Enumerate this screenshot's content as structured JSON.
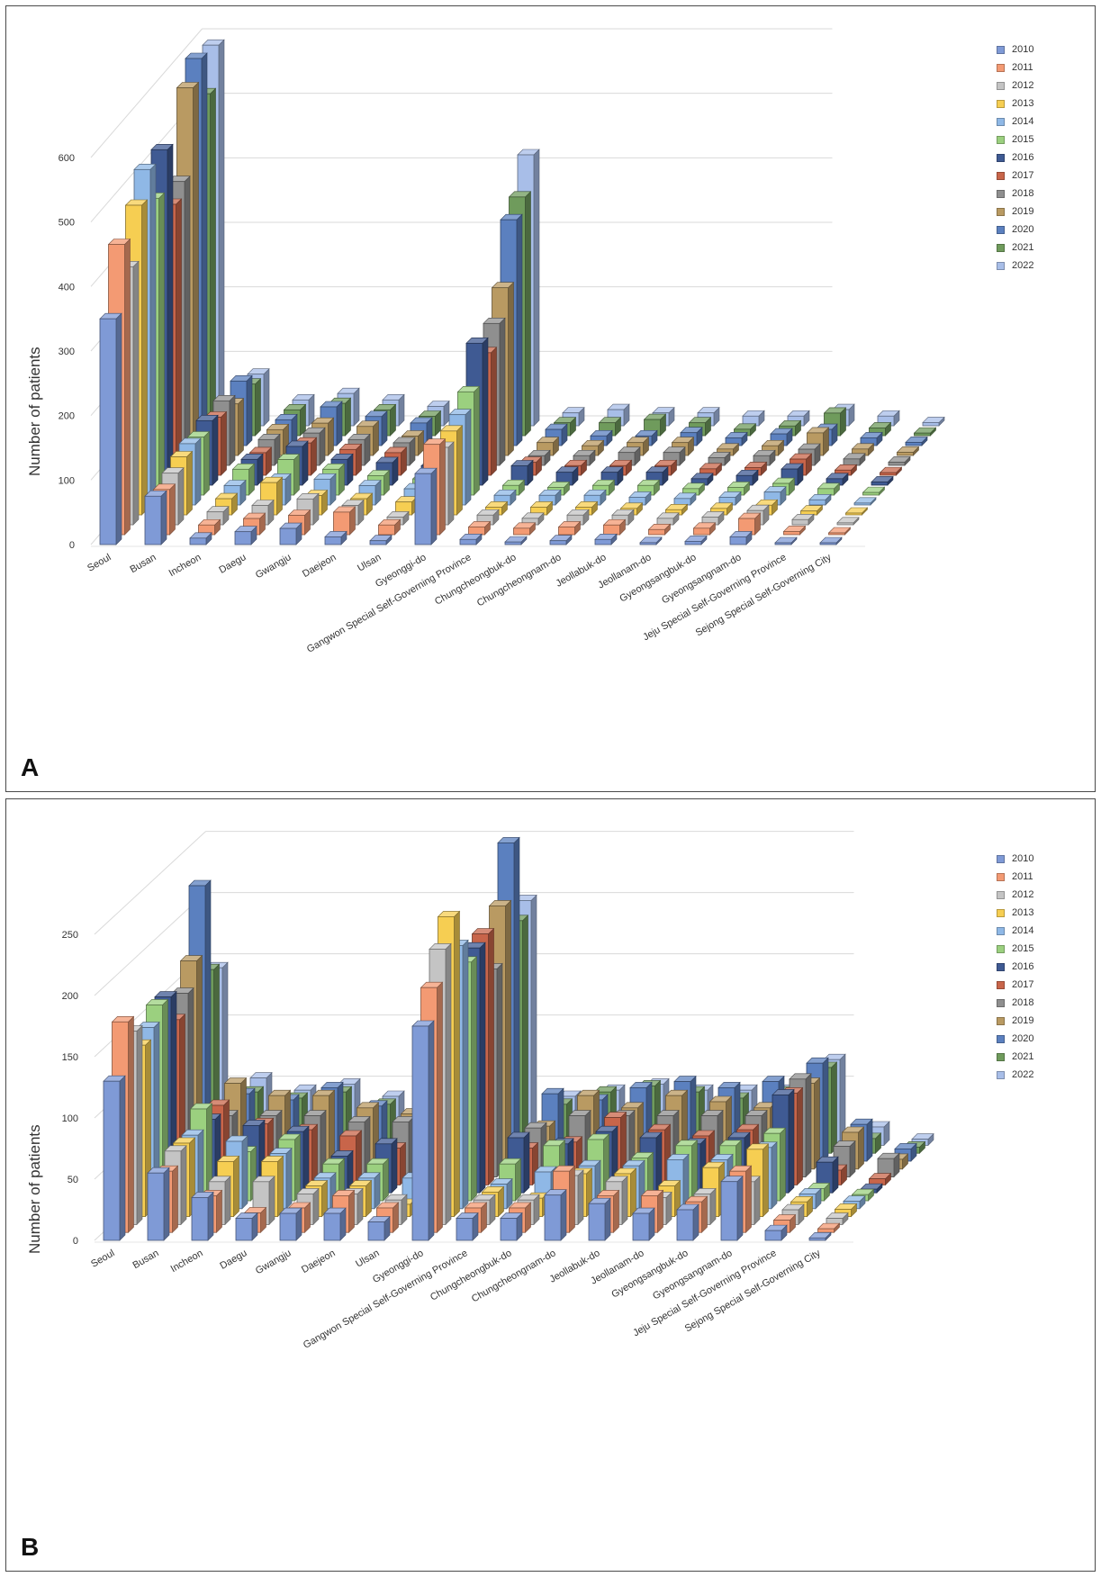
{
  "series_colors": {
    "2010": "#7f9ad6",
    "2011": "#f39a73",
    "2012": "#c4c4c4",
    "2013": "#f6ce52",
    "2014": "#8fb8e6",
    "2015": "#9bd07f",
    "2016": "#3f5a93",
    "2017": "#c8654a",
    "2018": "#8f8f8f",
    "2019": "#b99a62",
    "2020": "#5b80bf",
    "2021": "#6f9b5c",
    "2022": "#a8bee8"
  },
  "panel_a": {
    "letter": "A"
  },
  "panel_b": {
    "letter": "B"
  },
  "chart_data": [
    {
      "type": "bar",
      "panel": "A",
      "ylabel": "Number of patients",
      "ylim": [
        0,
        600
      ],
      "yticks": [
        0,
        100,
        200,
        300,
        400,
        500,
        600
      ],
      "legend_position": "top-right",
      "categories": [
        "Seoul",
        "Busan",
        "Incheon",
        "Daegu",
        "Gwangju",
        "Daejeon",
        "Ulsan",
        "Gyeonggi-do",
        "Gangwon Special Self-Governing Province",
        "Chungcheongbuk-do",
        "Chungcheongnam-do",
        "Jeollabuk-do",
        "Jeollanam-do",
        "Gyeongsangbuk-do",
        "Gyeongsangnam-do",
        "Jeju Special Self-Governing Province",
        "Sejong Special Self-Governing City"
      ],
      "series": [
        {
          "name": "2010",
          "values": [
            350,
            75,
            10,
            20,
            25,
            12,
            6,
            110,
            8,
            4,
            6,
            8,
            3,
            5,
            12,
            2,
            1
          ]
        },
        {
          "name": "2011",
          "values": [
            450,
            70,
            15,
            25,
            30,
            35,
            15,
            140,
            12,
            10,
            12,
            15,
            8,
            10,
            25,
            5,
            2
          ]
        },
        {
          "name": "2012",
          "values": [
            400,
            80,
            20,
            30,
            40,
            30,
            12,
            120,
            15,
            10,
            15,
            15,
            10,
            12,
            22,
            8,
            3
          ]
        },
        {
          "name": "2013",
          "values": [
            480,
            90,
            25,
            50,
            30,
            25,
            20,
            130,
            12,
            12,
            12,
            10,
            8,
            10,
            15,
            6,
            2
          ]
        },
        {
          "name": "2014",
          "values": [
            520,
            95,
            30,
            40,
            40,
            30,
            25,
            140,
            15,
            15,
            15,
            12,
            10,
            12,
            20,
            8,
            3
          ]
        },
        {
          "name": "2015",
          "values": [
            460,
            90,
            40,
            55,
            40,
            30,
            25,
            160,
            15,
            12,
            15,
            15,
            10,
            12,
            18,
            10,
            4
          ]
        },
        {
          "name": "2016",
          "values": [
            520,
            100,
            40,
            60,
            40,
            35,
            30,
            220,
            30,
            20,
            20,
            20,
            10,
            15,
            25,
            10,
            5
          ]
        },
        {
          "name": "2017",
          "values": [
            420,
            90,
            35,
            50,
            40,
            35,
            25,
            190,
            20,
            15,
            15,
            15,
            10,
            12,
            25,
            8,
            4
          ]
        },
        {
          "name": "2018",
          "values": [
            440,
            100,
            40,
            50,
            40,
            35,
            25,
            220,
            15,
            15,
            20,
            20,
            12,
            15,
            25,
            10,
            5
          ]
        },
        {
          "name": "2019",
          "values": [
            570,
            80,
            40,
            50,
            45,
            30,
            25,
            260,
            20,
            15,
            20,
            20,
            10,
            15,
            35,
            10,
            5
          ]
        },
        {
          "name": "2020",
          "values": [
            600,
            100,
            40,
            60,
            45,
            35,
            25,
            350,
            25,
            15,
            15,
            20,
            12,
            18,
            25,
            12,
            5
          ]
        },
        {
          "name": "2021",
          "values": [
            530,
            80,
            40,
            50,
            40,
            30,
            20,
            370,
            20,
            20,
            25,
            20,
            10,
            15,
            35,
            12,
            4
          ]
        },
        {
          "name": "2022",
          "values": [
            590,
            80,
            40,
            50,
            40,
            30,
            25,
            420,
            20,
            25,
            20,
            20,
            15,
            15,
            25,
            15,
            5
          ]
        }
      ]
    },
    {
      "type": "bar",
      "panel": "B",
      "ylabel": "Number of patients",
      "ylim": [
        0,
        250
      ],
      "yticks": [
        0,
        50,
        100,
        150,
        200,
        250
      ],
      "legend_position": "top-right",
      "categories": [
        "Seoul",
        "Busan",
        "Incheon",
        "Daegu",
        "Gwangju",
        "Daejeon",
        "Ulsan",
        "Gyeonggi-do",
        "Gangwon Special Self-Governing Province",
        "Chungcheongbuk-do",
        "Chungcheongnam-do",
        "Jeollabuk-do",
        "Jeollanam-do",
        "Gyeongsangbuk-do",
        "Gyeongsangnam-do",
        "Jeju Special Self-Governing Province",
        "Sejong Special Self-Governing City"
      ],
      "series": [
        {
          "name": "2010",
          "values": [
            130,
            55,
            35,
            18,
            22,
            22,
            15,
            175,
            18,
            18,
            37,
            30,
            22,
            25,
            48,
            8,
            2
          ]
        },
        {
          "name": "2011",
          "values": [
            172,
            50,
            30,
            16,
            20,
            30,
            20,
            200,
            20,
            20,
            50,
            30,
            30,
            25,
            50,
            10,
            3
          ]
        },
        {
          "name": "2012",
          "values": [
            158,
            60,
            35,
            35,
            25,
            25,
            20,
            225,
            20,
            20,
            40,
            35,
            22,
            25,
            35,
            12,
            5
          ]
        },
        {
          "name": "2013",
          "values": [
            140,
            60,
            45,
            45,
            25,
            25,
            10,
            245,
            20,
            15,
            35,
            35,
            25,
            40,
            55,
            12,
            6
          ]
        },
        {
          "name": "2014",
          "values": [
            148,
            60,
            55,
            45,
            25,
            25,
            25,
            215,
            20,
            30,
            35,
            35,
            40,
            40,
            50,
            12,
            6
          ]
        },
        {
          "name": "2015",
          "values": [
            160,
            75,
            40,
            50,
            30,
            30,
            20,
            195,
            30,
            45,
            50,
            35,
            45,
            45,
            55,
            10,
            5
          ]
        },
        {
          "name": "2016",
          "values": [
            160,
            60,
            55,
            50,
            30,
            40,
            25,
            200,
            45,
            40,
            50,
            45,
            40,
            45,
            80,
            25,
            3
          ]
        },
        {
          "name": "2017",
          "values": [
            135,
            65,
            50,
            45,
            40,
            30,
            30,
            205,
            30,
            35,
            55,
            45,
            40,
            45,
            75,
            12,
            5
          ]
        },
        {
          "name": "2018",
          "values": [
            150,
            50,
            50,
            50,
            45,
            45,
            30,
            170,
            40,
            50,
            50,
            50,
            50,
            50,
            80,
            25,
            15
          ]
        },
        {
          "name": "2019",
          "values": [
            170,
            70,
            60,
            60,
            50,
            45,
            30,
            215,
            35,
            60,
            50,
            60,
            55,
            50,
            70,
            30,
            8
          ]
        },
        {
          "name": "2020",
          "values": [
            225,
            55,
            50,
            60,
            45,
            40,
            35,
            260,
            55,
            50,
            60,
            65,
            60,
            65,
            80,
            30,
            10
          ]
        },
        {
          "name": "2021",
          "values": [
            150,
            50,
            45,
            50,
            40,
            35,
            30,
            190,
            40,
            50,
            55,
            50,
            45,
            50,
            70,
            12,
            5
          ]
        },
        {
          "name": "2022",
          "values": [
            145,
            55,
            45,
            50,
            40,
            35,
            30,
            200,
            40,
            45,
            50,
            45,
            45,
            45,
            70,
            15,
            5
          ]
        }
      ]
    }
  ]
}
